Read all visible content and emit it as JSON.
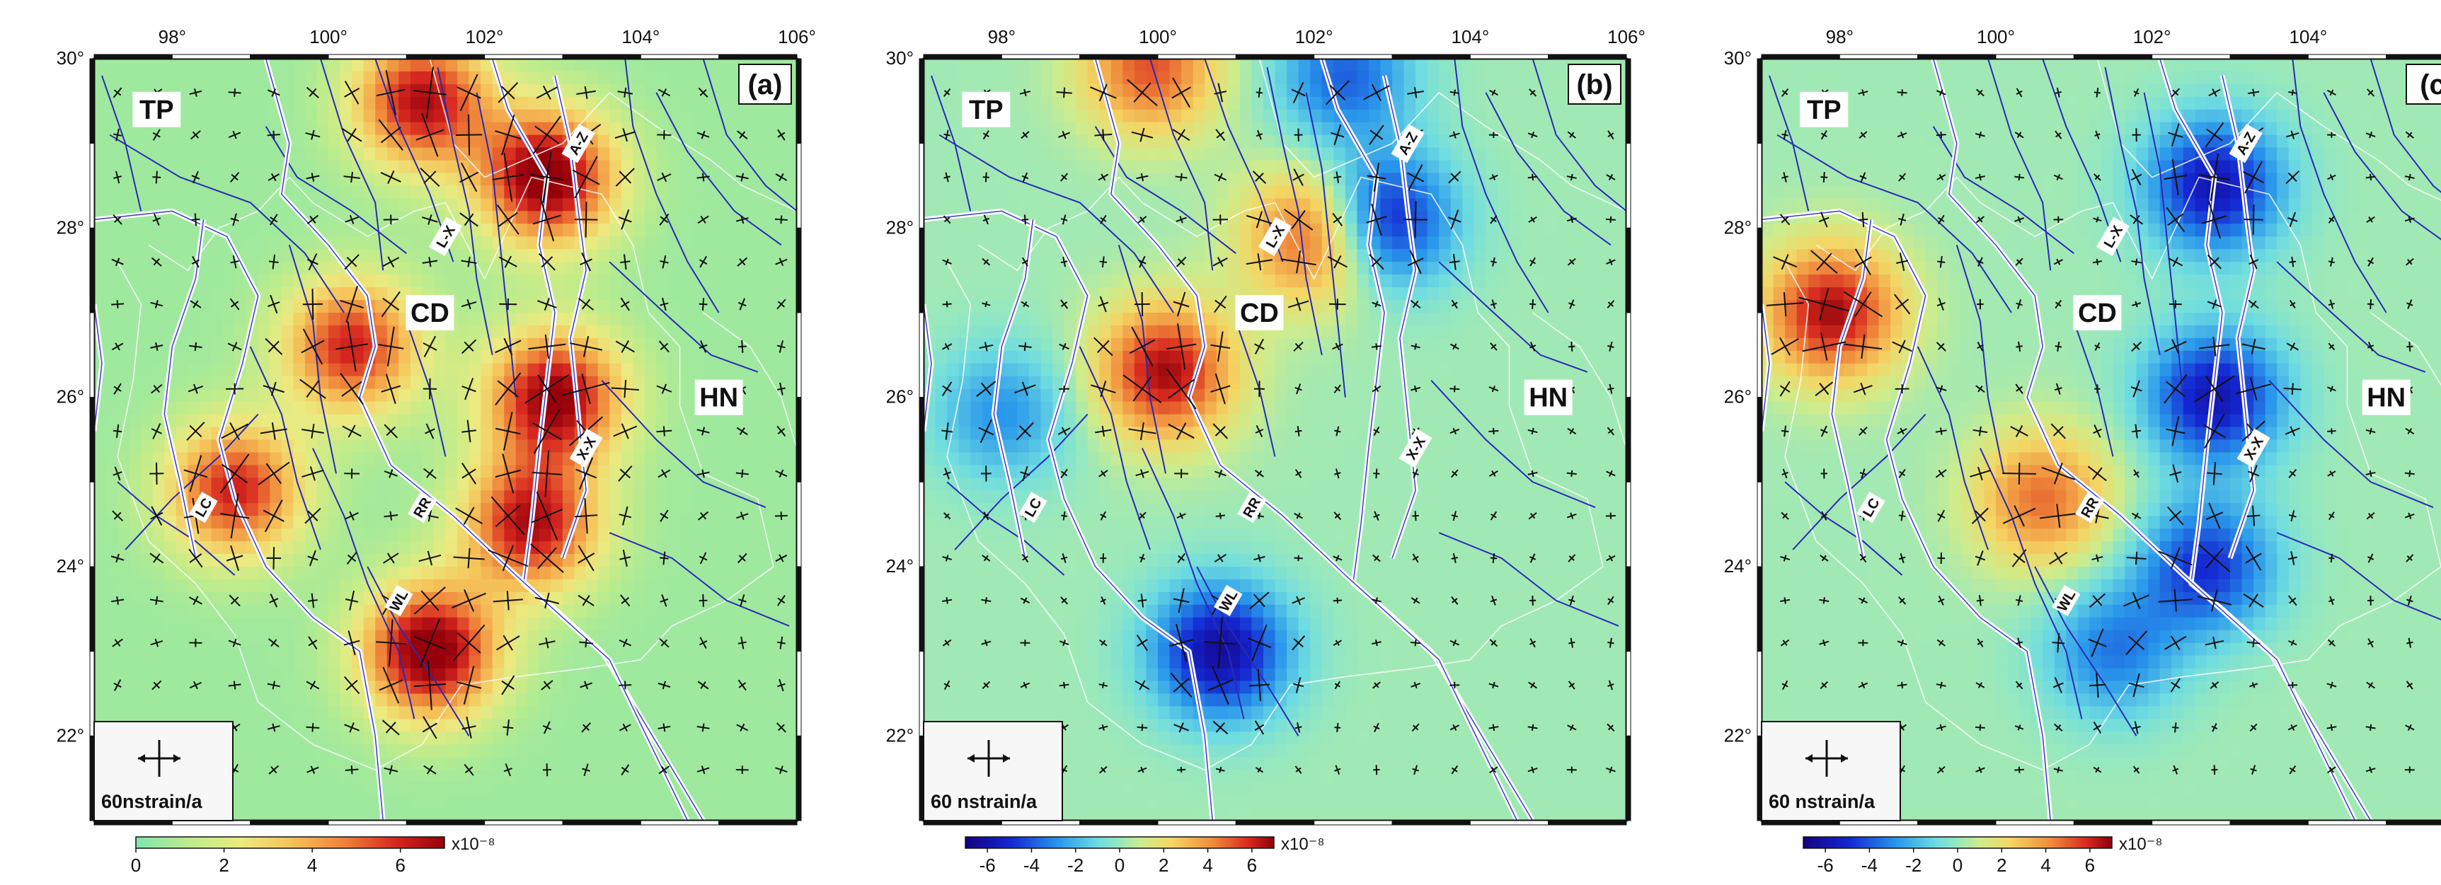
{
  "panels": [
    {
      "id": "a",
      "label": "(a)",
      "scale_label": "60nstrain/a",
      "colorbar": {
        "type": "sequential",
        "tick_labels": [
          "0",
          "2",
          "4",
          "6"
        ],
        "range": [
          0,
          7
        ],
        "unit": "x10⁻⁸"
      },
      "hotspots": [
        {
          "lon": 102.8,
          "lat": 28.6,
          "value": 7.0
        },
        {
          "lon": 102.9,
          "lat": 26.0,
          "value": 6.5
        },
        {
          "lon": 102.6,
          "lat": 24.5,
          "value": 6.0
        },
        {
          "lon": 101.2,
          "lat": 29.5,
          "value": 6.0
        },
        {
          "lon": 100.3,
          "lat": 26.6,
          "value": 5.5
        },
        {
          "lon": 101.3,
          "lat": 23.0,
          "value": 7.0
        },
        {
          "lon": 98.8,
          "lat": 24.9,
          "value": 5.5
        }
      ]
    },
    {
      "id": "b",
      "label": "(b)",
      "scale_label": "60 nstrain/a",
      "colorbar": {
        "type": "diverging",
        "tick_labels": [
          "-6",
          "-4",
          "-2",
          "0",
          "2",
          "4",
          "6"
        ],
        "range": [
          -7,
          7
        ],
        "unit": "x10⁻⁸"
      },
      "hotspots": [
        {
          "lon": 102.9,
          "lat": 28.1,
          "value": -6.0
        },
        {
          "lon": 102.4,
          "lat": 29.8,
          "value": -4.0
        },
        {
          "lon": 100.8,
          "lat": 23.0,
          "value": -6.5
        },
        {
          "lon": 98.0,
          "lat": 25.8,
          "value": -3.0
        },
        {
          "lon": 100.1,
          "lat": 26.3,
          "value": 6.5
        },
        {
          "lon": 99.9,
          "lat": 29.9,
          "value": 5.0
        },
        {
          "lon": 102.0,
          "lat": 27.9,
          "value": 5.5
        }
      ]
    },
    {
      "id": "c",
      "label": "(c",
      "scale_label": "60 nstrain/a",
      "colorbar": {
        "type": "diverging",
        "tick_labels": [
          "-6",
          "-4",
          "-2",
          "0",
          "2",
          "4",
          "6"
        ],
        "range": [
          -7,
          7
        ],
        "unit": "x10⁻⁸"
      },
      "hotspots": [
        {
          "lon": 97.9,
          "lat": 27.0,
          "value": 6.5
        },
        {
          "lon": 102.8,
          "lat": 26.0,
          "value": -6.0
        },
        {
          "lon": 102.8,
          "lat": 28.5,
          "value": -6.0
        },
        {
          "lon": 102.7,
          "lat": 24.0,
          "value": -5.0
        },
        {
          "lon": 100.6,
          "lat": 24.8,
          "value": 4.5
        },
        {
          "lon": 101.5,
          "lat": 23.0,
          "value": -3.5
        }
      ]
    }
  ],
  "x_tick_labels": [
    "98°",
    "100°",
    "102°",
    "104°",
    "106°"
  ],
  "y_tick_labels": [
    "30°",
    "28°",
    "26°",
    "24°",
    "22°"
  ],
  "regions": [
    {
      "label": "TP",
      "lon": 97.8,
      "lat": 29.4
    },
    {
      "label": "CD",
      "lon": 101.3,
      "lat": 27.0
    },
    {
      "label": "HN",
      "lon": 105.0,
      "lat": 26.0
    }
  ],
  "fault_labels": [
    {
      "label": "A-Z",
      "lon": 103.2,
      "lat": 29.0
    },
    {
      "label": "L-X",
      "lon": 101.5,
      "lat": 27.9
    },
    {
      "label": "X-X",
      "lon": 103.3,
      "lat": 25.4
    },
    {
      "label": "RR",
      "lon": 101.2,
      "lat": 24.7
    },
    {
      "label": "LC",
      "lon": 98.4,
      "lat": 24.7
    },
    {
      "label": "WL",
      "lon": 100.9,
      "lat": 23.6
    }
  ],
  "map_extent": {
    "lon": [
      97,
      106
    ],
    "lat": [
      21,
      30
    ]
  }
}
